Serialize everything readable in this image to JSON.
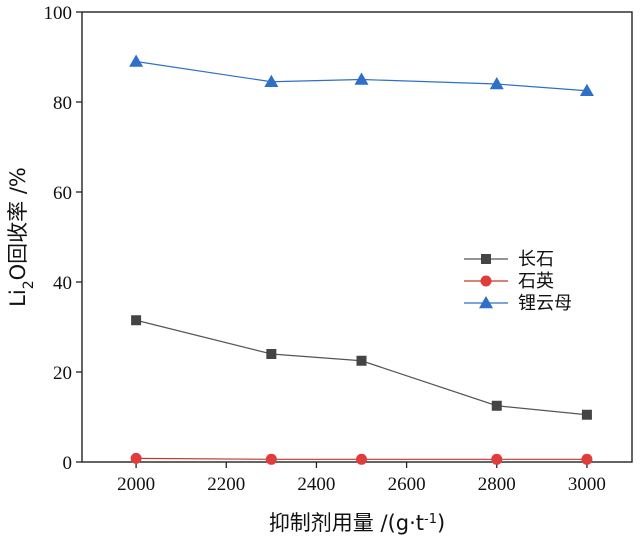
{
  "chart_data": {
    "type": "line",
    "title": "",
    "xlabel": "抑制剂用量  /(g·t-1)",
    "xlabel_parts": {
      "main": "抑制剂用量  /(g·t",
      "sup": "-1",
      "close": ")"
    },
    "ylabel": "Li2O回收率  /%",
    "ylabel_parts": {
      "a": "Li",
      "sub": "2",
      "b": "O回收率  /%"
    },
    "x": [
      2000,
      2300,
      2500,
      2800,
      3000
    ],
    "xlim": [
      1880,
      3100
    ],
    "ylim": [
      0,
      100
    ],
    "xticks": [
      2000,
      2200,
      2400,
      2600,
      2800,
      3000
    ],
    "yticks": [
      0,
      20,
      40,
      60,
      80,
      100
    ],
    "legend_position": "center-right",
    "grid": false,
    "series": [
      {
        "name": "长石",
        "marker": "square",
        "line_color": "#555555",
        "marker_color": "#444444",
        "values": [
          31.5,
          24.0,
          22.5,
          12.5,
          10.5
        ]
      },
      {
        "name": "石英",
        "marker": "circle",
        "line_color": "#c0392b",
        "marker_color": "#e03c3c",
        "values": [
          0.8,
          0.6,
          0.6,
          0.6,
          0.6
        ]
      },
      {
        "name": "锂云母",
        "marker": "triangle",
        "line_color": "#2e6fc8",
        "marker_color": "#2e6fc8",
        "values": [
          89.0,
          84.5,
          85.0,
          84.0,
          82.5
        ]
      }
    ]
  }
}
